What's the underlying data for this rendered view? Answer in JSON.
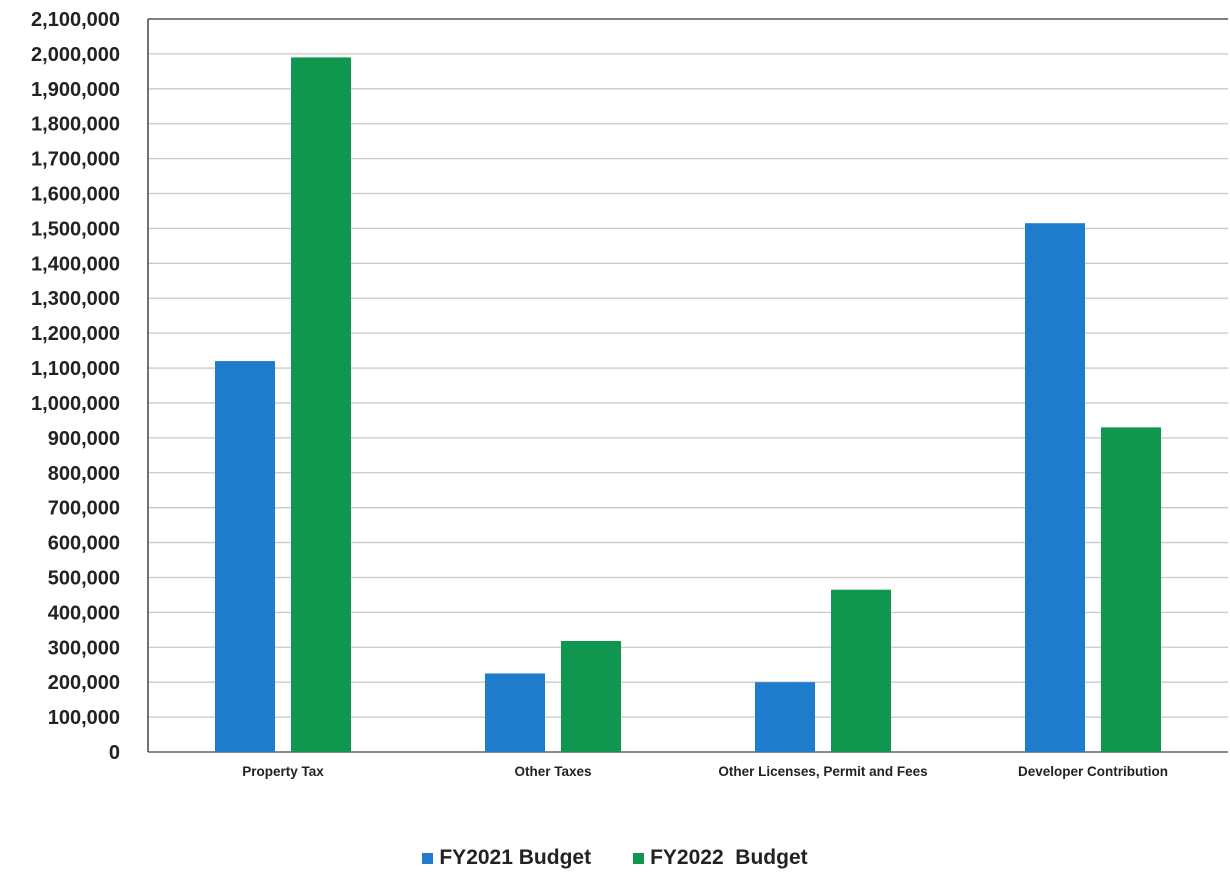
{
  "chart_data": {
    "type": "bar",
    "title": "",
    "xlabel": "",
    "ylabel": "",
    "categories": [
      "Property Tax",
      "Other Taxes",
      "Other Licenses, Permit and Fees",
      "Developer Contribution"
    ],
    "series": [
      {
        "name": "FY2021 Budget",
        "color": "#1f7bcc",
        "values": [
          1120000,
          225000,
          200000,
          1515000
        ]
      },
      {
        "name": "FY2022  Budget",
        "color": "#11964f",
        "values": [
          1990000,
          318000,
          465000,
          930000
        ]
      }
    ],
    "ylim": [
      0,
      2100000
    ],
    "yticks": [
      "0",
      "100,000",
      "200,000",
      "300,000",
      "400,000",
      "500,000",
      "600,000",
      "700,000",
      "800,000",
      "900,000",
      "1,000,000",
      "1,100,000",
      "1,200,000",
      "1,300,000",
      "1,400,000",
      "1,500,000",
      "1,600,000",
      "1,700,000",
      "1,800,000",
      "1,900,000",
      "2,000,000",
      "2,100,000"
    ],
    "grid": true,
    "legend_position": "bottom-center"
  }
}
